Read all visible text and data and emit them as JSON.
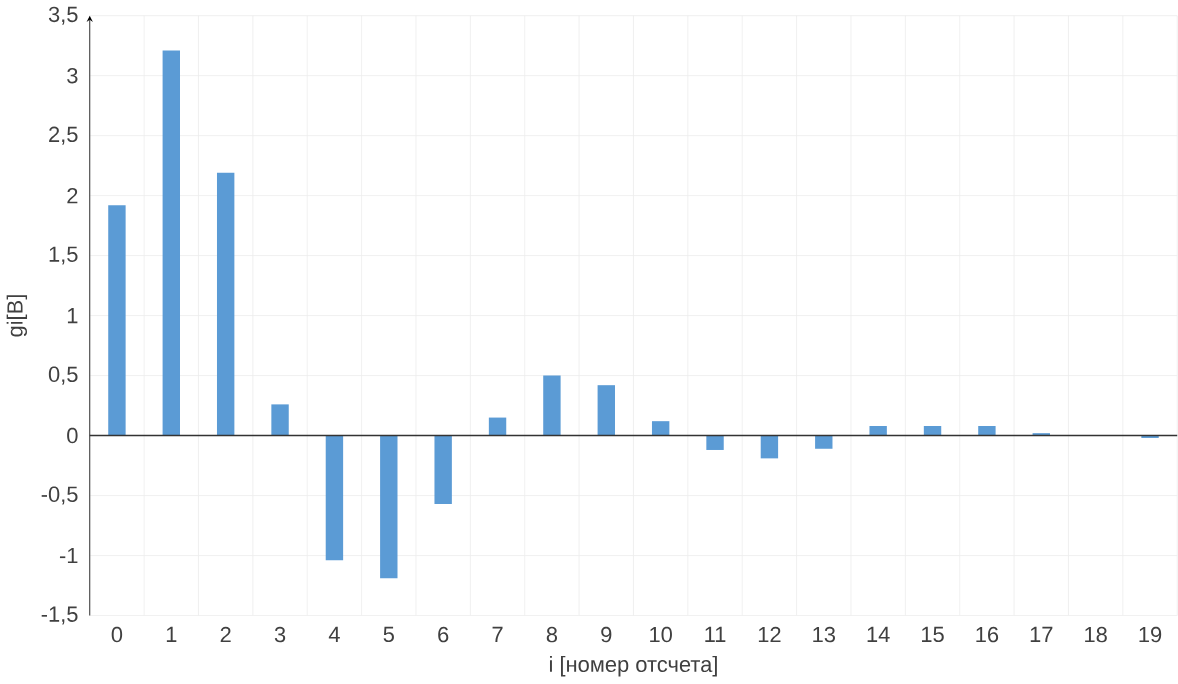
{
  "chart_data": {
    "type": "bar",
    "xlabel": "i [номер отсчета]",
    "ylabel": "gi[B]",
    "categories": [
      "0",
      "1",
      "2",
      "3",
      "4",
      "5",
      "6",
      "7",
      "8",
      "9",
      "10",
      "11",
      "12",
      "13",
      "14",
      "15",
      "16",
      "17",
      "18",
      "19"
    ],
    "values": [
      1.92,
      3.21,
      2.19,
      0.26,
      -1.04,
      -1.19,
      -0.57,
      0.15,
      0.5,
      0.42,
      0.12,
      -0.12,
      -0.19,
      -0.11,
      0.08,
      0.08,
      0.08,
      0.02,
      0,
      -0.02
    ],
    "color": "#5b9bd5",
    "ylim": [
      -1.5,
      3.5
    ],
    "yticks": [
      {
        "value": -1.5,
        "label": "-1,5"
      },
      -1,
      {
        "value": -0.5,
        "label": "-0,5"
      },
      0,
      {
        "value": 0.5,
        "label": "0,5"
      },
      1,
      {
        "value": 1.5,
        "label": "1,5"
      },
      2,
      {
        "value": 2.5,
        "label": "2,5"
      },
      3,
      {
        "value": 3.5,
        "label": "3,5"
      }
    ],
    "grid": true
  }
}
